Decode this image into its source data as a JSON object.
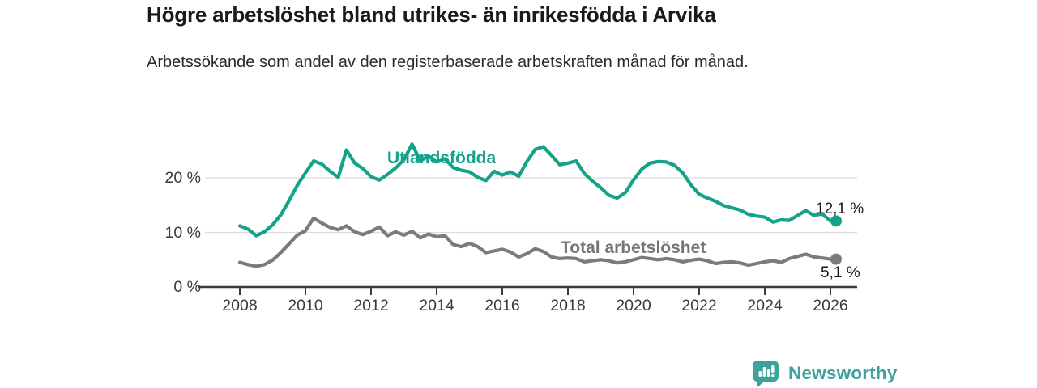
{
  "header": {
    "title": "Högre arbetslöshet bland utrikes- än inrikesfödda i Arvika",
    "subtitle": "Arbetssökande som andel av den registerbaserade arbetskraften månad för månad."
  },
  "chart_data": {
    "type": "line",
    "title": "Högre arbetslöshet bland utrikes- än inrikesfödda i Arvika",
    "subtitle": "Arbetssökande som andel av den registerbaserade arbetskraften månad för månad.",
    "unit": "%",
    "x_axis": {
      "start_year": 2008,
      "end_year": 2026,
      "step_years_between_points": 0.25,
      "tick_years": [
        2008,
        2010,
        2012,
        2014,
        2016,
        2018,
        2020,
        2022,
        2024,
        2026
      ]
    },
    "y_axis": {
      "range": [
        0,
        28
      ],
      "grid": true,
      "ticks": [
        {
          "value": 0,
          "label": "0 %"
        },
        {
          "value": 10,
          "label": "10 %"
        },
        {
          "value": 20,
          "label": "20 %"
        }
      ]
    },
    "legend_position": "inline-labels-on-lines",
    "series": [
      {
        "name": "Utlandsfödda",
        "color": "#15a28b",
        "end_label": "12,1 %",
        "end_value": 12.1,
        "values": [
          11.2,
          10.6,
          9.4,
          10.1,
          11.4,
          13.2,
          15.8,
          18.6,
          20.9,
          23.1,
          22.5,
          21.2,
          20.1,
          25.1,
          22.7,
          21.7,
          20.2,
          19.6,
          20.6,
          21.8,
          23.3,
          26.2,
          23.1,
          24.0,
          22.9,
          23.5,
          21.9,
          21.4,
          21.1,
          20.1,
          19.5,
          21.2,
          20.5,
          21.1,
          20.3,
          23.0,
          25.2,
          25.7,
          24.1,
          22.4,
          22.7,
          23.1,
          20.8,
          19.4,
          18.2,
          16.8,
          16.3,
          17.3,
          19.6,
          21.6,
          22.7,
          23.0,
          22.9,
          22.3,
          20.9,
          18.7,
          17.0,
          16.3,
          15.7,
          14.9,
          14.5,
          14.1,
          13.3,
          13.0,
          12.8,
          11.9,
          12.3,
          12.2,
          13.1,
          14.0,
          13.1,
          13.4,
          12.1
        ]
      },
      {
        "name": "Total arbetslöshet",
        "color": "#7b7b7b",
        "end_label": "5,1 %",
        "end_value": 5.1,
        "values": [
          4.5,
          4.1,
          3.8,
          4.1,
          4.9,
          6.3,
          7.9,
          9.5,
          10.3,
          12.6,
          11.7,
          10.9,
          10.5,
          11.2,
          10.1,
          9.6,
          10.2,
          11.0,
          9.4,
          10.1,
          9.5,
          10.2,
          9.0,
          9.7,
          9.2,
          9.4,
          7.8,
          7.4,
          8.0,
          7.4,
          6.3,
          6.6,
          6.9,
          6.4,
          5.5,
          6.1,
          7.0,
          6.5,
          5.5,
          5.2,
          5.3,
          5.2,
          4.6,
          4.8,
          5.0,
          4.8,
          4.4,
          4.6,
          5.0,
          5.4,
          5.2,
          5.0,
          5.2,
          5.0,
          4.6,
          4.9,
          5.1,
          4.8,
          4.3,
          4.5,
          4.6,
          4.4,
          4.0,
          4.3,
          4.6,
          4.8,
          4.5,
          5.2,
          5.6,
          6.0,
          5.5,
          5.3,
          5.1
        ]
      }
    ],
    "colors": {
      "grid": "#dcdcdc",
      "axis": "#3c3c3c",
      "tick_text": "#3a3a3a"
    }
  },
  "branding": {
    "wordmark": "Newsworthy",
    "logo_icon": "newsworthy-speech-bubble-bar-chart-icon",
    "color": "#3da29b"
  }
}
